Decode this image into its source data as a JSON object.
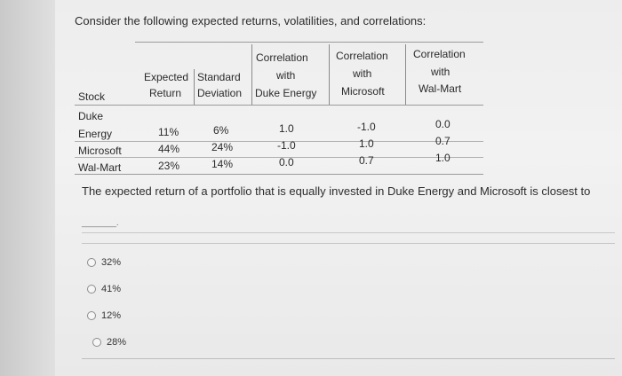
{
  "question": "Consider the following expected returns, volatilities, and correlations:",
  "table": {
    "headers": {
      "stock": "Stock",
      "exp_return_1": "Expected",
      "exp_return_2": "Return",
      "std_1": "Standard",
      "std_2": "Deviation",
      "corr_duke_1": "Correlation",
      "corr_duke_2": "with",
      "corr_duke_3": "Duke Energy",
      "corr_ms_1": "Correlation",
      "corr_ms_2": "with",
      "corr_ms_3": "Microsoft",
      "corr_wm_1": "Correlation",
      "corr_wm_2": "with",
      "corr_wm_3": "Wal-Mart"
    },
    "rows": [
      {
        "name_1": "Duke",
        "name_2": "Energy",
        "ret": "11%",
        "sd": "6%",
        "c_duke": "1.0",
        "c_ms": "-1.0",
        "c_wm": "0.0"
      },
      {
        "name_1": "",
        "name_2": "Microsoft",
        "ret": "44%",
        "sd": "24%",
        "c_duke": "-1.0",
        "c_ms": "1.0",
        "c_wm": "0.7"
      },
      {
        "name_1": "",
        "name_2": "Wal-Mart",
        "ret": "23%",
        "sd": "14%",
        "c_duke": "0.0",
        "c_ms": "0.7",
        "c_wm": "1.0"
      }
    ]
  },
  "prompt": "The expected return of a portfolio that is equally invested in Duke Energy and Microsoft is closest to",
  "blank": "_______.",
  "options": [
    "32%",
    "41%",
    "12%",
    "28%"
  ]
}
